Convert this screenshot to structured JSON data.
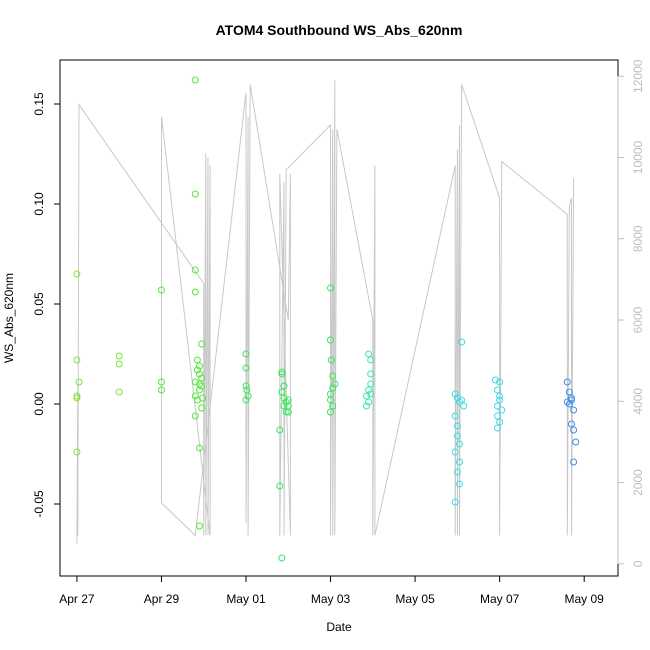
{
  "chart_data": {
    "type": "scatter",
    "title": "ATOM4 Southbound WS_Abs_620nm",
    "xlabel": "Date",
    "ylabel": "WS_Abs_620nm",
    "xlim_days": [
      -0.4,
      12.8
    ],
    "x_tick_labels": [
      "Apr 27",
      "Apr 29",
      "May 01",
      "May 03",
      "May 05",
      "May 07",
      "May 09"
    ],
    "x_tick_days": [
      0,
      2,
      4,
      6,
      8,
      10,
      12
    ],
    "ylim": [
      -0.086,
      0.172
    ],
    "y_ticks": [
      -0.05,
      0.0,
      0.05,
      0.1,
      0.15
    ],
    "y_tick_labels": [
      "-0.05",
      "0.00",
      "0.05",
      "0.10",
      "0.15"
    ],
    "y2lim": [
      -300,
      12400
    ],
    "y2_ticks": [
      0,
      2000,
      4000,
      6000,
      8000,
      10000,
      12000
    ],
    "y2_tick_labels": [
      "0",
      "2000",
      "4000",
      "6000",
      "8000",
      "10000",
      "12000"
    ],
    "y2_color": "#bdbdbd",
    "grid": false,
    "points": [
      [
        0.0,
        0.065
      ],
      [
        0.0,
        0.022
      ],
      [
        0.0,
        0.004
      ],
      [
        0.0,
        0.003
      ],
      [
        0.05,
        0.011
      ],
      [
        0.0,
        -0.024
      ],
      [
        1.0,
        0.024
      ],
      [
        1.0,
        0.02
      ],
      [
        1.0,
        0.006
      ],
      [
        2.0,
        0.057
      ],
      [
        2.0,
        0.011
      ],
      [
        2.0,
        0.007
      ],
      [
        2.8,
        0.162
      ],
      [
        2.8,
        0.105
      ],
      [
        2.8,
        0.067
      ],
      [
        2.8,
        0.056
      ],
      [
        2.85,
        0.022
      ],
      [
        2.9,
        0.019
      ],
      [
        2.85,
        0.017
      ],
      [
        2.9,
        0.015
      ],
      [
        2.95,
        0.013
      ],
      [
        2.8,
        0.011
      ],
      [
        2.9,
        0.01
      ],
      [
        2.95,
        0.009
      ],
      [
        2.9,
        0.007
      ],
      [
        2.8,
        0.004
      ],
      [
        2.85,
        0.002
      ],
      [
        2.95,
        -0.002
      ],
      [
        2.8,
        -0.006
      ],
      [
        2.9,
        -0.022
      ],
      [
        2.9,
        -0.061
      ],
      [
        2.95,
        0.03
      ],
      [
        2.97,
        0.003
      ],
      [
        4.0,
        0.025
      ],
      [
        4.0,
        0.018
      ],
      [
        4.0,
        0.009
      ],
      [
        4.02,
        0.007
      ],
      [
        4.05,
        0.004
      ],
      [
        4.0,
        0.002
      ],
      [
        4.85,
        0.016
      ],
      [
        4.85,
        0.015
      ],
      [
        4.9,
        0.009
      ],
      [
        4.85,
        0.006
      ],
      [
        4.9,
        0.003
      ],
      [
        4.95,
        0.001
      ],
      [
        4.9,
        -0.001
      ],
      [
        4.95,
        -0.004
      ],
      [
        4.8,
        -0.013
      ],
      [
        4.8,
        -0.041
      ],
      [
        4.85,
        -0.077
      ],
      [
        5.0,
        0.002
      ],
      [
        5.0,
        -0.001
      ],
      [
        5.0,
        -0.004
      ],
      [
        6.0,
        0.058
      ],
      [
        6.0,
        0.032
      ],
      [
        6.02,
        0.022
      ],
      [
        6.05,
        0.014
      ],
      [
        6.1,
        0.01
      ],
      [
        6.05,
        0.008
      ],
      [
        6.0,
        0.005
      ],
      [
        6.0,
        0.002
      ],
      [
        6.05,
        -0.001
      ],
      [
        6.0,
        -0.004
      ],
      [
        6.9,
        0.025
      ],
      [
        6.95,
        0.022
      ],
      [
        6.95,
        0.015
      ],
      [
        6.95,
        0.01
      ],
      [
        6.9,
        0.007
      ],
      [
        6.85,
        0.004
      ],
      [
        6.9,
        0.001
      ],
      [
        6.85,
        -0.001
      ],
      [
        6.95,
        0.005
      ],
      [
        8.95,
        0.005
      ],
      [
        9.0,
        0.003
      ],
      [
        9.05,
        0.001
      ],
      [
        8.95,
        -0.006
      ],
      [
        9.0,
        -0.011
      ],
      [
        9.0,
        -0.016
      ],
      [
        9.05,
        -0.02
      ],
      [
        8.95,
        -0.024
      ],
      [
        9.05,
        -0.029
      ],
      [
        9.0,
        -0.034
      ],
      [
        9.05,
        -0.04
      ],
      [
        8.95,
        -0.049
      ],
      [
        9.1,
        0.031
      ],
      [
        9.1,
        0.002
      ],
      [
        9.15,
        -0.001
      ],
      [
        9.9,
        0.012
      ],
      [
        10.0,
        0.011
      ],
      [
        9.95,
        0.007
      ],
      [
        10.0,
        0.004
      ],
      [
        10.0,
        0.002
      ],
      [
        9.95,
        -0.001
      ],
      [
        10.05,
        -0.003
      ],
      [
        9.95,
        -0.006
      ],
      [
        10.0,
        -0.009
      ],
      [
        9.95,
        -0.012
      ],
      [
        11.6,
        0.011
      ],
      [
        11.65,
        0.006
      ],
      [
        11.7,
        0.003
      ],
      [
        11.6,
        0.001
      ],
      [
        11.65,
        0.0
      ],
      [
        11.7,
        0.002
      ],
      [
        11.75,
        -0.003
      ],
      [
        11.7,
        -0.01
      ],
      [
        11.75,
        -0.013
      ],
      [
        11.8,
        -0.019
      ],
      [
        11.75,
        -0.029
      ]
    ],
    "series2_name": "",
    "series2_color": "#c8c8c8",
    "series2": [
      [
        0.0,
        500
      ],
      [
        0.02,
        4400
      ],
      [
        0.02,
        700
      ],
      [
        0.05,
        11300
      ],
      [
        3.0,
        6900
      ],
      [
        3.0,
        700
      ],
      [
        3.05,
        10100
      ],
      [
        3.05,
        700
      ],
      [
        3.1,
        10000
      ],
      [
        3.1,
        700
      ],
      [
        3.15,
        9800
      ],
      [
        3.15,
        700
      ],
      [
        2.0,
        11000
      ],
      [
        2.0,
        1500
      ],
      [
        2.8,
        700
      ],
      [
        4.0,
        11600
      ],
      [
        4.0,
        1000
      ],
      [
        4.05,
        11000
      ],
      [
        4.05,
        700
      ],
      [
        4.1,
        11800
      ],
      [
        5.0,
        6000
      ],
      [
        5.05,
        9600
      ],
      [
        5.05,
        700
      ],
      [
        4.8,
        9600
      ],
      [
        4.8,
        700
      ],
      [
        4.9,
        9400
      ],
      [
        4.9,
        700
      ],
      [
        4.95,
        9700
      ],
      [
        6.0,
        10800
      ],
      [
        6.0,
        700
      ],
      [
        6.05,
        10700
      ],
      [
        6.05,
        700
      ],
      [
        6.1,
        11900
      ],
      [
        6.1,
        700
      ],
      [
        6.15,
        10700
      ],
      [
        7.0,
        6000
      ],
      [
        7.0,
        700
      ],
      [
        7.05,
        9800
      ],
      [
        7.05,
        700
      ],
      [
        8.95,
        9800
      ],
      [
        8.95,
        700
      ],
      [
        9.0,
        10200
      ],
      [
        9.0,
        700
      ],
      [
        9.05,
        10800
      ],
      [
        9.05,
        700
      ],
      [
        9.1,
        11800
      ],
      [
        10.0,
        9000
      ],
      [
        10.0,
        700
      ],
      [
        10.05,
        9900
      ],
      [
        11.6,
        8600
      ],
      [
        11.6,
        700
      ],
      [
        11.65,
        8800
      ],
      [
        11.7,
        9000
      ],
      [
        11.7,
        700
      ],
      [
        11.75,
        9500
      ]
    ],
    "point_colors": [
      "#7ee53c",
      "#55e83c",
      "#3ce85e",
      "#3ce8a6",
      "#3cdce8",
      "#3c8ee8"
    ]
  }
}
